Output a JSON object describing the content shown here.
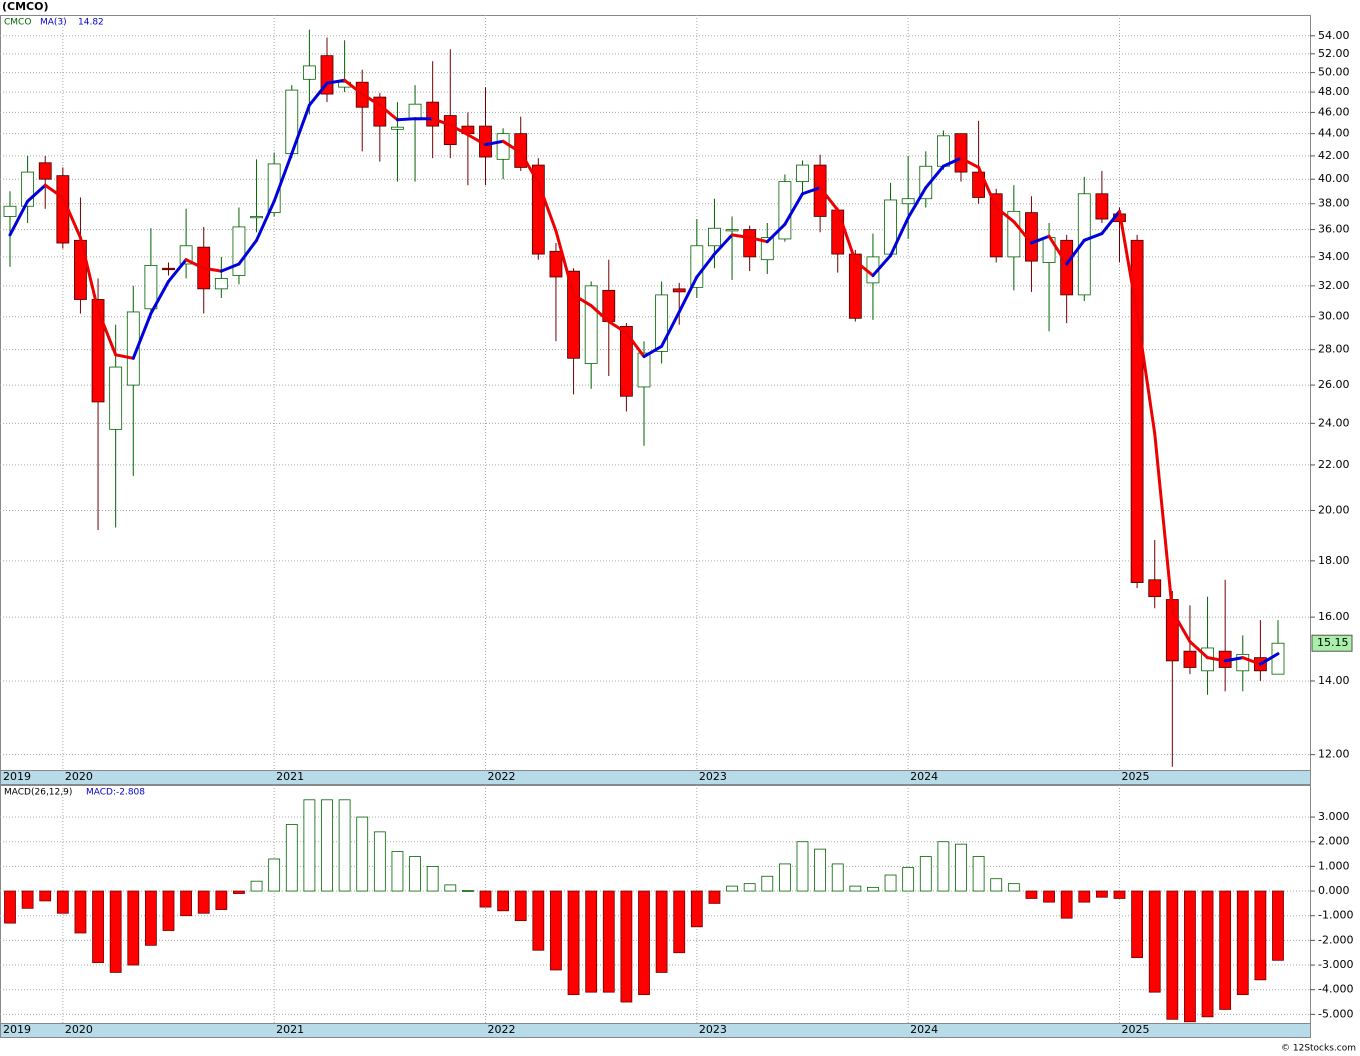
{
  "chart_data": {
    "type": "candlestick",
    "title": "(CMCO)",
    "symbol": "CMCO",
    "credit": "© 12Stocks.com",
    "categories": [
      "2019",
      null,
      null,
      "2020",
      null,
      null,
      null,
      null,
      null,
      null,
      null,
      null,
      null,
      null,
      null,
      "2021",
      null,
      null,
      null,
      null,
      null,
      null,
      null,
      null,
      null,
      null,
      null,
      "2022",
      null,
      null,
      null,
      null,
      null,
      null,
      null,
      null,
      null,
      null,
      null,
      "2023",
      null,
      null,
      null,
      null,
      null,
      null,
      null,
      null,
      null,
      null,
      null,
      "2024",
      null,
      null,
      null,
      null,
      null,
      null,
      null,
      null,
      null,
      null,
      null,
      "2025",
      null,
      null,
      null,
      null,
      null,
      null,
      null,
      null,
      null
    ],
    "open": [
      37,
      37.8,
      41.4,
      40.3,
      35.2,
      31.1,
      23.7,
      26,
      30.5,
      33.2,
      33.5,
      34.7,
      31.8,
      32.7,
      36.9,
      37.3,
      42.2,
      49.3,
      51.8,
      48.5,
      49,
      47.5,
      44.4,
      45.3,
      47,
      45.7,
      44.7,
      44.7,
      41.7,
      44,
      41.2,
      34.4,
      33,
      27.2,
      31.7,
      29.4,
      25.9,
      27.9,
      31.8,
      31.9,
      34.8,
      35.9,
      36,
      33.8,
      35.3,
      39.8,
      41.2,
      37.5,
      34.2,
      32.2,
      34.2,
      38,
      38.4,
      41.1,
      44,
      40.6,
      38.8,
      34,
      37.3,
      33.6,
      35.2,
      31.4,
      38.8,
      37.2,
      35.2,
      17.3,
      16.6,
      14.9,
      14.3,
      14.9,
      14.3,
      14.7,
      14.2
    ],
    "high": [
      39,
      42,
      42,
      41,
      38.5,
      32.5,
      29.5,
      32,
      36.1,
      33.6,
      37.6,
      36.2,
      34,
      37.7,
      41.7,
      42.3,
      48.7,
      54.7,
      53.8,
      53.5,
      50.3,
      47.9,
      47,
      48.7,
      51.2,
      52.5,
      46,
      48.5,
      44.5,
      45.6,
      41.8,
      35,
      33.2,
      32.3,
      33.8,
      29.6,
      28.5,
      32.3,
      32.2,
      36.8,
      38.4,
      37,
      36.3,
      36.5,
      40.4,
      41.6,
      42.1,
      37.7,
      34.5,
      35.7,
      39.7,
      42,
      42.4,
      44.3,
      44,
      45.2,
      39.2,
      39.5,
      38.6,
      36.5,
      35.6,
      40.2,
      40.7,
      37.7,
      35.6,
      18.8,
      16.9,
      16.4,
      16.7,
      17.3,
      15.4,
      15.9,
      15.9
    ],
    "low": [
      33.3,
      36.5,
      37.6,
      34.6,
      30.2,
      19.2,
      19.3,
      21.5,
      29.9,
      32.7,
      32.5,
      30.2,
      31.2,
      32.1,
      35.8,
      37,
      41.8,
      45.8,
      47,
      48,
      42.4,
      41.5,
      39.8,
      39.8,
      41.8,
      41.8,
      39.5,
      39.5,
      40,
      40.7,
      33.8,
      28.5,
      25.5,
      25.8,
      26.5,
      24.6,
      22.9,
      27.2,
      29.5,
      31.2,
      33.2,
      32.4,
      33,
      32.8,
      35.1,
      38.7,
      35.8,
      32.9,
      29.7,
      29.8,
      34,
      35.3,
      37.7,
      40.8,
      39.8,
      38,
      33.6,
      31.7,
      31.6,
      29.1,
      29.6,
      31,
      36.5,
      33.6,
      17,
      16.3,
      11.7,
      14.2,
      13.6,
      13.7,
      13.7,
      14,
      14.2
    ],
    "close": [
      37.8,
      40.6,
      40,
      35,
      31.1,
      25.1,
      27,
      30.3,
      33.4,
      33.1,
      34.8,
      31.8,
      32.5,
      36.2,
      37,
      41.3,
      48.2,
      50.7,
      47.8,
      49,
      46.5,
      44.7,
      44.6,
      46.8,
      44.7,
      43,
      44,
      41.9,
      44,
      41,
      34.2,
      32.6,
      27.5,
      32,
      29.7,
      25.4,
      27.8,
      31.4,
      31.6,
      34.8,
      36.1,
      36,
      34,
      35.4,
      39.8,
      41.2,
      37,
      34.2,
      29.9,
      34,
      38.3,
      38.4,
      41.1,
      43.8,
      40.6,
      38.5,
      34,
      37.4,
      33.7,
      35.4,
      31.4,
      38.8,
      36.8,
      36.6,
      17.2,
      16.7,
      14.6,
      14.4,
      15,
      14.4,
      14.8,
      14.3,
      15.15
    ],
    "up_color": "#ffffff",
    "down_color": "#ff0000",
    "ma": {
      "name": "MA(3)",
      "up_color": "#0000dd",
      "down_color": "#ee0000",
      "values": [
        35.6,
        38.2,
        39.5,
        38.5,
        35.4,
        30.4,
        27.7,
        27.5,
        30.2,
        32.3,
        33.8,
        33.2,
        33,
        33.5,
        35.2,
        38.2,
        42.2,
        46.7,
        48.9,
        49.2,
        47.8,
        46.7,
        45.3,
        45.4,
        45.4,
        44.8,
        43.9,
        43,
        43.3,
        42.3,
        39.7,
        35.9,
        31.4,
        30.7,
        29.7,
        29,
        27.6,
        28.2,
        30.3,
        32.6,
        34.2,
        35.6,
        35.4,
        35.1,
        36.4,
        38.8,
        39.3,
        37.5,
        33.7,
        32.7,
        34.1,
        36.9,
        39.3,
        41.1,
        41.8,
        41,
        37.7,
        36.6,
        35,
        35.5,
        33.5,
        35.2,
        35.7,
        37.4,
        30.2,
        23.5,
        16.2,
        15.2,
        14.7,
        14.6,
        14.7,
        14.5,
        14.82
      ]
    },
    "log": true,
    "ylim": [
      11.62,
      56.4
    ],
    "yticks": [
      {
        "value": 12,
        "label": "12.00"
      },
      {
        "value": 14,
        "label": "14.00"
      },
      {
        "value": 16,
        "label": "16.00"
      },
      {
        "value": 18,
        "label": "18.00"
      },
      {
        "value": 20,
        "label": "20.00"
      },
      {
        "value": 22,
        "label": "22.00"
      },
      {
        "value": 24,
        "label": "24.00"
      },
      {
        "value": 26,
        "label": "26.00"
      },
      {
        "value": 28,
        "label": "28.00"
      },
      {
        "value": 30,
        "label": "30.00"
      },
      {
        "value": 32,
        "label": "32.00"
      },
      {
        "value": 34,
        "label": "34.00"
      },
      {
        "value": 36,
        "label": "36.00"
      },
      {
        "value": 38,
        "label": "38.00"
      },
      {
        "value": 40,
        "label": "40.00"
      },
      {
        "value": 42,
        "label": "42.00"
      },
      {
        "value": 44,
        "label": "44.00"
      },
      {
        "value": 46,
        "label": "46.00"
      },
      {
        "value": 48,
        "label": "48.00"
      },
      {
        "value": 50,
        "label": "50.00"
      },
      {
        "value": 52,
        "label": "52.00"
      },
      {
        "value": 54,
        "label": "54.00"
      }
    ],
    "grid": true,
    "macd": {
      "name": "MACD(26,12,9)",
      "label": "MACD:",
      "pos_color": "#006400",
      "neg_color": "#ff0000",
      "values": [
        -1.3,
        -0.7,
        -0.4,
        -0.9,
        -1.7,
        -2.9,
        -3.3,
        -3.0,
        -2.2,
        -1.6,
        -1.0,
        -0.9,
        -0.75,
        -0.1,
        0.4,
        1.3,
        2.7,
        3.7,
        3.7,
        3.7,
        3.0,
        2.4,
        1.6,
        1.4,
        1.0,
        0.25,
        0.02,
        -0.65,
        -0.8,
        -1.2,
        -2.4,
        -3.2,
        -4.2,
        -4.1,
        -4.1,
        -4.5,
        -4.2,
        -3.3,
        -2.5,
        -1.45,
        -0.5,
        0.2,
        0.3,
        0.6,
        1.1,
        2.0,
        1.7,
        1.1,
        0.2,
        0.15,
        0.65,
        0.95,
        1.4,
        2.0,
        1.9,
        1.4,
        0.5,
        0.3,
        -0.3,
        -0.45,
        -1.1,
        -0.45,
        -0.25,
        -0.3,
        -2.7,
        -4.1,
        -5.2,
        -5.3,
        -5.1,
        -4.8,
        -4.2,
        -3.6,
        -2.808
      ],
      "ylim": [
        -5.35,
        4.3
      ],
      "yticks": [
        {
          "value": 3,
          "label": "3.000"
        },
        {
          "value": 2,
          "label": "2.000"
        },
        {
          "value": 1,
          "label": "1.000"
        },
        {
          "value": 0,
          "label": "0.000"
        },
        {
          "value": -1,
          "label": "-1.000"
        },
        {
          "value": -2,
          "label": "-2.000"
        },
        {
          "value": -3,
          "label": "-3.000"
        },
        {
          "value": -4,
          "label": "-4.000"
        },
        {
          "value": -5,
          "label": "-5.000"
        }
      ]
    }
  }
}
